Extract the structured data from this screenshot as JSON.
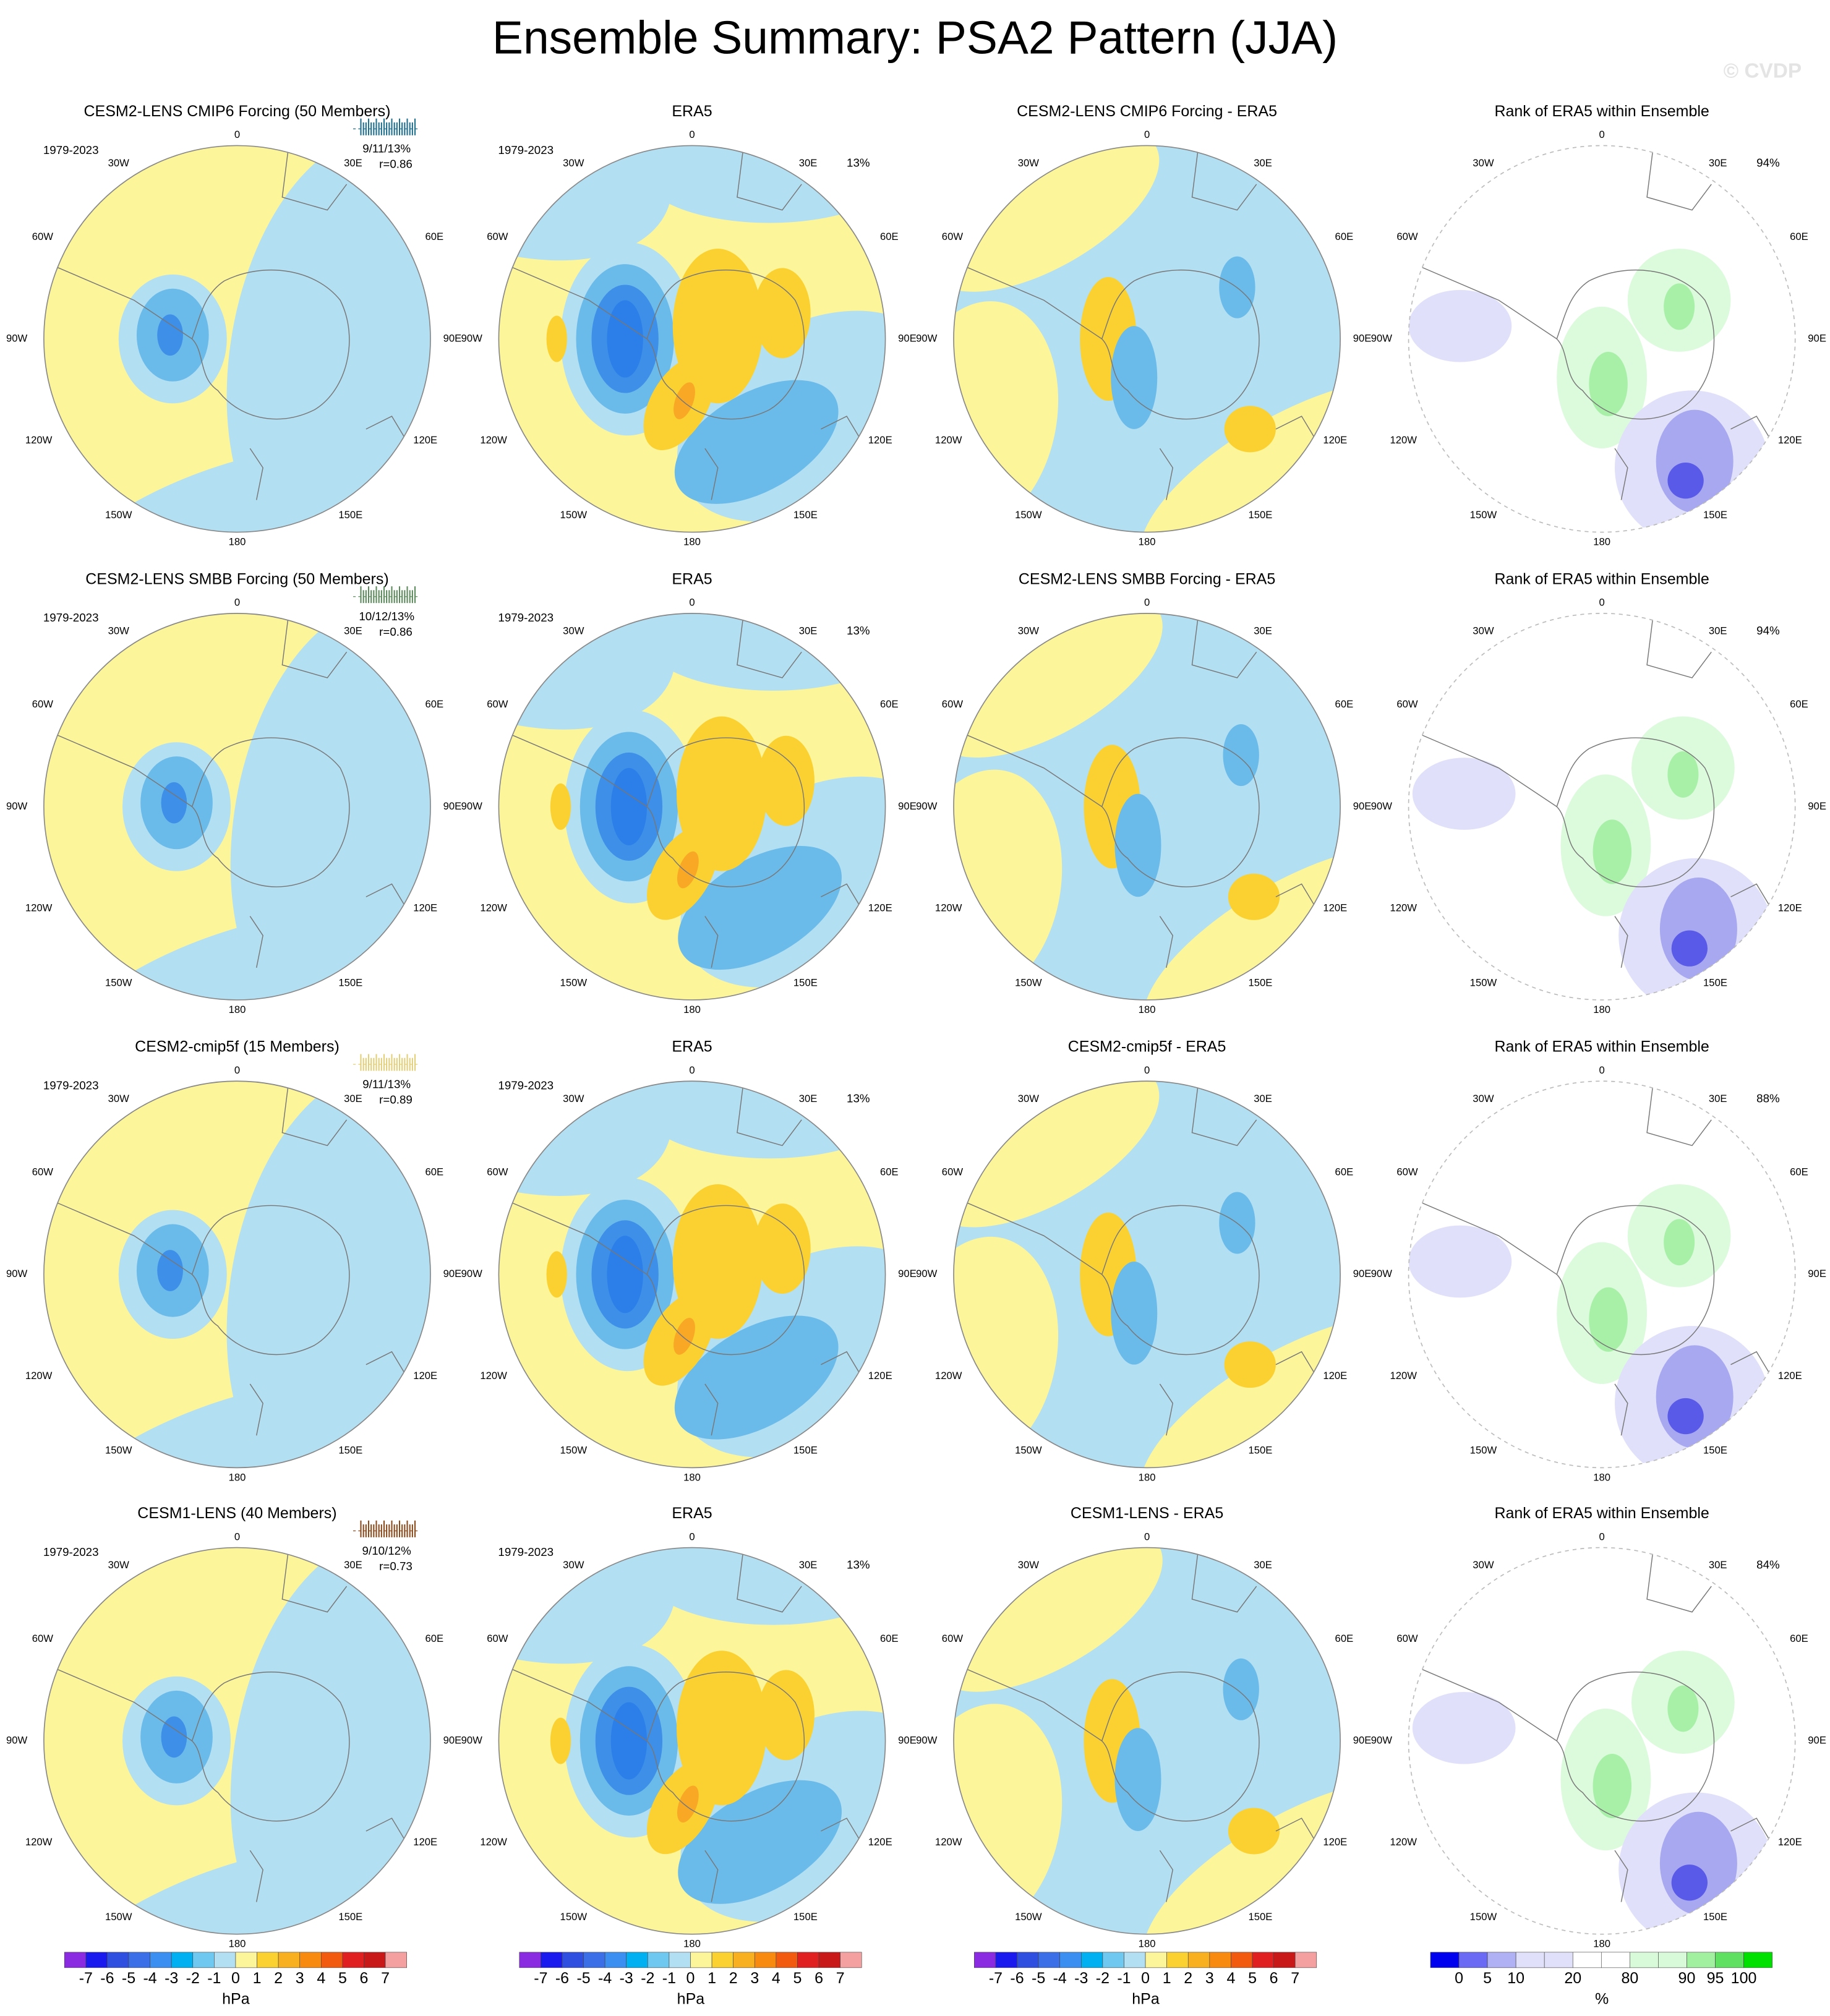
{
  "title": "Ensemble Summary: PSA2 Pattern (JJA)",
  "watermark": "© CVDP",
  "longitude_labels": [
    "0",
    "30E",
    "60E",
    "90E",
    "120E",
    "150E",
    "180",
    "150W",
    "120W",
    "90W",
    "60W",
    "30W"
  ],
  "rows": [
    {
      "color": "#1f6f8f",
      "panels": [
        {
          "title": "CESM2-LENS CMIP6 Forcing (50 Members)",
          "period": "1979-2023",
          "stat": "9/11/13%",
          "corr": "r=0.86"
        },
        {
          "title": "ERA5",
          "period": "1979-2023",
          "pct": "13%"
        },
        {
          "title": "CESM2-LENS CMIP6 Forcing - ERA5"
        },
        {
          "title": "Rank of ERA5 within Ensemble",
          "pct": "94%"
        }
      ]
    },
    {
      "color": "#5d8a5d",
      "panels": [
        {
          "title": "CESM2-LENS SMBB Forcing (50 Members)",
          "period": "1979-2023",
          "stat": "10/12/13%",
          "corr": "r=0.86"
        },
        {
          "title": "ERA5",
          "period": "1979-2023",
          "pct": "13%"
        },
        {
          "title": "CESM2-LENS SMBB Forcing - ERA5"
        },
        {
          "title": "Rank of ERA5 within Ensemble",
          "pct": "94%"
        }
      ]
    },
    {
      "color": "#e3cf78",
      "panels": [
        {
          "title": "CESM2-cmip5f (15 Members)",
          "period": "1979-2023",
          "stat": "9/11/13%",
          "corr": "r=0.89"
        },
        {
          "title": "ERA5",
          "period": "1979-2023",
          "pct": "13%"
        },
        {
          "title": "CESM2-cmip5f - ERA5"
        },
        {
          "title": "Rank of ERA5 within Ensemble",
          "pct": "88%"
        }
      ]
    },
    {
      "color": "#8b4a1c",
      "panels": [
        {
          "title": "CESM1-LENS (40 Members)",
          "period": "1979-2023",
          "stat": "9/10/12%",
          "corr": "r=0.73"
        },
        {
          "title": "ERA5",
          "period": "1979-2023",
          "pct": "13%"
        },
        {
          "title": "CESM1-LENS - ERA5"
        },
        {
          "title": "Rank of ERA5 within Ensemble",
          "pct": "84%"
        }
      ]
    }
  ],
  "colorbars": [
    {
      "labels": [
        -7,
        -6,
        -5,
        -4,
        -3,
        -2,
        -1,
        0,
        1,
        2,
        3,
        4,
        5,
        6,
        7
      ],
      "unit": "hPa",
      "colors": [
        "#8a2be2",
        "#1a1aee",
        "#2f4fe0",
        "#3a6fe8",
        "#3b8ff0",
        "#00b0f0",
        "#6fc8f0",
        "#b3dff2",
        "#fdf59a",
        "#fbd131",
        "#f9b020",
        "#f98a10",
        "#f25a10",
        "#e02020",
        "#c81818",
        "#f5a0a0"
      ]
    },
    {
      "labels": [
        -7,
        -6,
        -5,
        -4,
        -3,
        -2,
        -1,
        0,
        1,
        2,
        3,
        4,
        5,
        6,
        7
      ],
      "unit": "hPa",
      "colors": [
        "#8a2be2",
        "#1a1aee",
        "#2f4fe0",
        "#3a6fe8",
        "#3b8ff0",
        "#00b0f0",
        "#6fc8f0",
        "#b3dff2",
        "#fdf59a",
        "#fbd131",
        "#f9b020",
        "#f98a10",
        "#f25a10",
        "#e02020",
        "#c81818",
        "#f5a0a0"
      ]
    },
    {
      "labels": [
        -7,
        -6,
        -5,
        -4,
        -3,
        -2,
        -1,
        0,
        1,
        2,
        3,
        4,
        5,
        6,
        7
      ],
      "unit": "hPa",
      "colors": [
        "#8a2be2",
        "#1a1aee",
        "#2f4fe0",
        "#3a6fe8",
        "#3b8ff0",
        "#00b0f0",
        "#6fc8f0",
        "#b3dff2",
        "#fdf59a",
        "#fbd131",
        "#f9b020",
        "#f98a10",
        "#f25a10",
        "#e02020",
        "#c81818",
        "#f5a0a0"
      ]
    },
    {
      "labels": [
        0,
        5,
        10,
        20,
        80,
        90,
        95,
        100
      ],
      "unit": "%",
      "colors": [
        "#0000ee",
        "#6a6af5",
        "#b0b0f5",
        "#e0e0fa",
        "#e0e0fa",
        "#ffffff",
        "#ffffff",
        "#d8fad8",
        "#d8fad8",
        "#a0f0a0",
        "#60e060",
        "#00e000"
      ]
    }
  ]
}
